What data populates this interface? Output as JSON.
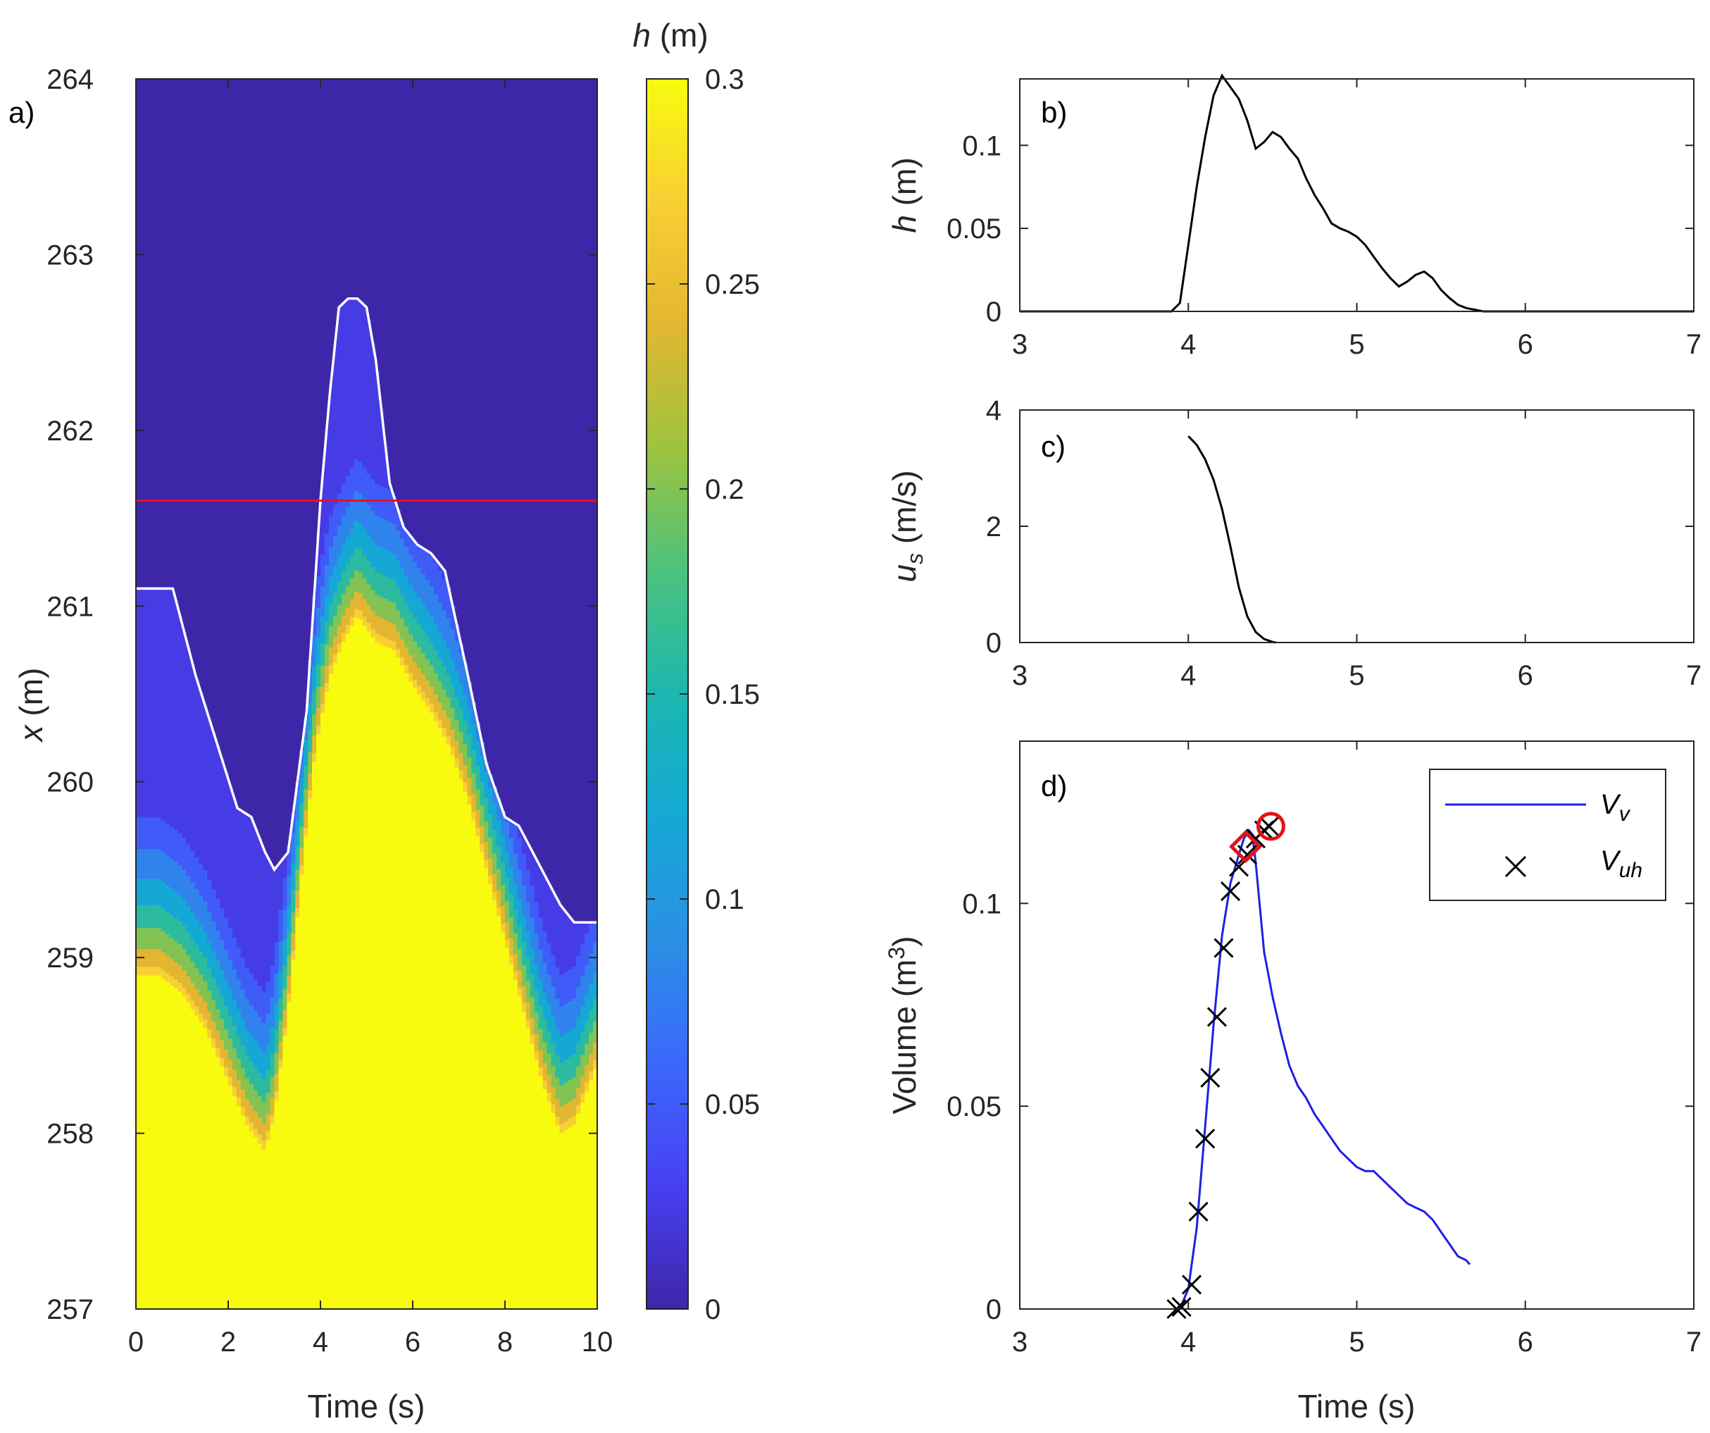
{
  "chart_data": [
    {
      "panel": "a)",
      "type": "heatmap",
      "xlabel": "Time (s)",
      "ylabel": "x (m)",
      "xlim": [
        0,
        10
      ],
      "ylim": [
        257,
        264
      ],
      "xticks": [
        0,
        2,
        4,
        6,
        8,
        10
      ],
      "yticks": [
        257,
        258,
        259,
        260,
        261,
        262,
        263,
        264
      ],
      "colorbar": {
        "title": "h (m)",
        "range": [
          0,
          0.3
        ],
        "ticks": [
          "0",
          "0.05",
          "0.1",
          "0.15",
          "0.2",
          "0.25",
          "0.3"
        ],
        "colormap": "parula"
      },
      "reference_line": {
        "x_m": 261.6,
        "color": "#e8101c"
      },
      "colors": {
        "background": "#3e26a8",
        "saturated": "#f9fb0e",
        "front_line": "#ffffff"
      },
      "runup_front": {
        "t": [
          0,
          0.8,
          1.3,
          2.2,
          2.5,
          2.8,
          3.0,
          3.3,
          3.7,
          4.0,
          4.2,
          4.4,
          4.6,
          4.8,
          5.0,
          5.2,
          5.5,
          5.8,
          6.1,
          6.4,
          6.7,
          7.2,
          7.6,
          8.0,
          8.3,
          8.6,
          8.9,
          9.2,
          9.5,
          10.0
        ],
        "x": [
          261.1,
          261.1,
          260.6,
          259.85,
          259.8,
          259.6,
          259.5,
          259.6,
          260.4,
          261.6,
          262.2,
          262.7,
          262.75,
          262.75,
          262.7,
          262.4,
          261.7,
          261.45,
          261.35,
          261.3,
          261.2,
          260.6,
          260.1,
          259.8,
          259.75,
          259.6,
          259.45,
          259.3,
          259.2,
          259.2
        ]
      },
      "saturated_edge": {
        "t": [
          0,
          0.5,
          1.0,
          1.5,
          2.0,
          2.4,
          2.8,
          3.0,
          3.3,
          3.6,
          3.9,
          4.2,
          4.5,
          4.8,
          5.2,
          5.6,
          6.0,
          6.4,
          6.8,
          7.2,
          7.6,
          8.0,
          8.4,
          8.8,
          9.2,
          9.5,
          10.0
        ],
        "x": [
          258.9,
          258.9,
          258.8,
          258.6,
          258.3,
          258.05,
          257.9,
          258.1,
          258.7,
          259.5,
          260.2,
          260.6,
          260.8,
          260.95,
          260.8,
          260.75,
          260.55,
          260.4,
          260.2,
          259.9,
          259.5,
          259.1,
          258.7,
          258.3,
          258.0,
          258.05,
          258.4
        ]
      },
      "transition_band": [
        {
          "offset_m": 0.05,
          "h": 0.27
        },
        {
          "offset_m": 0.15,
          "h": 0.24
        },
        {
          "offset_m": 0.27,
          "h": 0.2
        },
        {
          "offset_m": 0.4,
          "h": 0.16
        },
        {
          "offset_m": 0.55,
          "h": 0.12
        },
        {
          "offset_m": 0.72,
          "h": 0.08
        },
        {
          "offset_m": 0.9,
          "h": 0.05
        }
      ]
    },
    {
      "panel": "b)",
      "type": "line",
      "xlabel": "",
      "ylabel": "h (m)",
      "xlim": [
        3,
        7
      ],
      "ylim": [
        0,
        0.14
      ],
      "xticks": [
        3,
        4,
        5,
        6,
        7
      ],
      "yticks": [
        "0",
        "0.05",
        "0.1"
      ],
      "series": [
        {
          "color": "#000000",
          "x": [
            3,
            3.9,
            3.95,
            4.0,
            4.05,
            4.1,
            4.15,
            4.2,
            4.25,
            4.3,
            4.35,
            4.4,
            4.45,
            4.5,
            4.55,
            4.6,
            4.65,
            4.7,
            4.75,
            4.8,
            4.85,
            4.9,
            4.95,
            5.0,
            5.05,
            5.1,
            5.15,
            5.2,
            5.25,
            5.3,
            5.35,
            5.4,
            5.45,
            5.5,
            5.55,
            5.6,
            5.65,
            5.7,
            5.75,
            5.8,
            6.0,
            7.0
          ],
          "y": [
            0,
            0,
            0.005,
            0.04,
            0.075,
            0.105,
            0.13,
            0.142,
            0.135,
            0.128,
            0.115,
            0.098,
            0.102,
            0.108,
            0.105,
            0.098,
            0.092,
            0.08,
            0.07,
            0.062,
            0.053,
            0.05,
            0.048,
            0.045,
            0.04,
            0.033,
            0.026,
            0.02,
            0.015,
            0.018,
            0.022,
            0.024,
            0.02,
            0.013,
            0.008,
            0.004,
            0.002,
            0.001,
            0,
            0,
            0,
            0
          ]
        }
      ]
    },
    {
      "panel": "c)",
      "type": "line",
      "xlabel": "",
      "ylabel": "u_s (m/s)",
      "xlim": [
        3,
        7
      ],
      "ylim": [
        0,
        4
      ],
      "xticks": [
        3,
        4,
        5,
        6,
        7
      ],
      "yticks": [
        "0",
        "2",
        "4"
      ],
      "series": [
        {
          "color": "#000000",
          "x": [
            4.0,
            4.05,
            4.1,
            4.15,
            4.2,
            4.25,
            4.3,
            4.35,
            4.4,
            4.45,
            4.5,
            4.52
          ],
          "y": [
            3.55,
            3.4,
            3.15,
            2.8,
            2.3,
            1.65,
            0.95,
            0.45,
            0.18,
            0.06,
            0.01,
            0
          ]
        }
      ]
    },
    {
      "panel": "d)",
      "type": "line",
      "xlabel": "Time (s)",
      "ylabel": "Volume (m^3)",
      "xlim": [
        3,
        7
      ],
      "ylim": [
        0,
        0.14
      ],
      "xticks": [
        3,
        4,
        5,
        6,
        7
      ],
      "yticks": [
        "0",
        "0.05",
        "0.1"
      ],
      "legend_position": "top-right",
      "series": [
        {
          "name": "V_v",
          "color": "#1f1fe6",
          "x": [
            3.95,
            4.0,
            4.05,
            4.1,
            4.15,
            4.2,
            4.25,
            4.3,
            4.33,
            4.36,
            4.38,
            4.4,
            4.45,
            4.5,
            4.55,
            4.6,
            4.65,
            4.7,
            4.75,
            4.8,
            4.85,
            4.9,
            4.95,
            5.0,
            5.05,
            5.1,
            5.15,
            5.2,
            5.25,
            5.3,
            5.35,
            5.4,
            5.45,
            5.5,
            5.55,
            5.6,
            5.65,
            5.67
          ],
          "y": [
            0,
            0.005,
            0.02,
            0.045,
            0.07,
            0.092,
            0.105,
            0.112,
            0.116,
            0.118,
            0.117,
            0.11,
            0.088,
            0.077,
            0.068,
            0.06,
            0.055,
            0.052,
            0.048,
            0.045,
            0.042,
            0.039,
            0.037,
            0.035,
            0.034,
            0.034,
            0.032,
            0.03,
            0.028,
            0.026,
            0.025,
            0.024,
            0.022,
            0.019,
            0.016,
            0.013,
            0.012,
            0.011
          ]
        },
        {
          "name": "V_uh",
          "marker": "x",
          "color": "#000000",
          "x": [
            3.93,
            3.96,
            4.02,
            4.06,
            4.1,
            4.13,
            4.17,
            4.21,
            4.25,
            4.3,
            4.35,
            4.4,
            4.45,
            4.48
          ],
          "y": [
            0,
            0.0005,
            0.006,
            0.024,
            0.042,
            0.057,
            0.072,
            0.089,
            0.103,
            0.109,
            0.112,
            0.116,
            0.118,
            0.119
          ]
        }
      ],
      "highlight_markers": [
        {
          "shape": "diamond",
          "color": "#e8101c",
          "x": 4.34,
          "y": 0.114
        },
        {
          "shape": "circle",
          "color": "#e8101c",
          "x": 4.49,
          "y": 0.119
        }
      ]
    }
  ]
}
